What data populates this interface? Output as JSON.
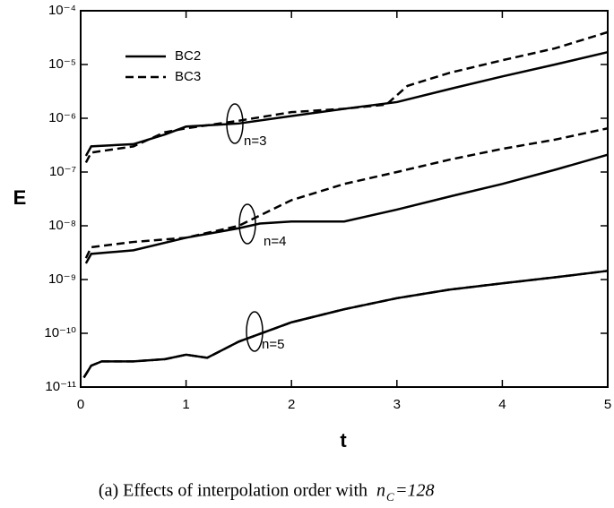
{
  "chart_data": {
    "type": "line",
    "xlabel": "t",
    "ylabel": "E",
    "xlim": [
      0,
      5
    ],
    "xticks": [
      0,
      1,
      2,
      3,
      4,
      5
    ],
    "ylim": [
      1e-11,
      0.0001
    ],
    "log_y": true,
    "yticks": [
      {
        "value": 1e-11,
        "label": "10⁻¹¹"
      },
      {
        "value": 1e-10,
        "label": "10⁻¹⁰"
      },
      {
        "value": 1e-09,
        "label": "10⁻⁹"
      },
      {
        "value": 1e-08,
        "label": "10⁻⁸"
      },
      {
        "value": 1e-07,
        "label": "10⁻⁷"
      },
      {
        "value": 1e-06,
        "label": "10⁻⁶"
      },
      {
        "value": 1e-05,
        "label": "10⁻⁵"
      },
      {
        "value": 0.0001,
        "label": "10⁻⁴"
      }
    ],
    "annotations": [
      "n=3",
      "n=4",
      "n=5"
    ],
    "caption": {
      "text": "(a) Effects of interpolation order with",
      "symbol": "n",
      "subscript": "C",
      "rest": "=128"
    },
    "series": [
      {
        "name": "BC2",
        "dashed": false,
        "color": "#000000",
        "x": [
          0.05,
          0.1,
          0.5,
          0.8,
          1,
          1.5,
          2,
          2.5,
          3,
          3.5,
          4,
          4.5,
          5
        ],
        "values": [
          2e-07,
          3e-07,
          3.3e-07,
          5e-07,
          7e-07,
          8e-07,
          1.1e-06,
          1.5e-06,
          2e-06,
          3.5e-06,
          6e-06,
          1e-05,
          1.7e-05
        ]
      },
      {
        "name": "BC3",
        "dashed": true,
        "color": "#000000",
        "x": [
          0.05,
          0.1,
          0.5,
          0.8,
          1,
          1.5,
          2,
          2.5,
          2.9,
          3.1,
          3.5,
          4,
          4.5,
          5
        ],
        "values": [
          1.5e-07,
          2.3e-07,
          3e-07,
          5.5e-07,
          6.5e-07,
          9e-07,
          1.3e-06,
          1.5e-06,
          1.8e-06,
          4e-06,
          7e-06,
          1.2e-05,
          2e-05,
          4e-05
        ]
      },
      {
        "name": "BC2",
        "dashed": false,
        "color": "#000000",
        "x": [
          0.05,
          0.1,
          0.5,
          1,
          1.5,
          1.7,
          2,
          2.5,
          3,
          3.5,
          4,
          4.5,
          5
        ],
        "values": [
          2e-09,
          3e-09,
          3.5e-09,
          6e-09,
          9e-09,
          1.1e-08,
          1.2e-08,
          1.2e-08,
          2e-08,
          3.5e-08,
          6e-08,
          1.1e-07,
          2.1e-07
        ]
      },
      {
        "name": "BC3",
        "dashed": true,
        "color": "#000000",
        "x": [
          0.05,
          0.1,
          0.5,
          1,
          1.5,
          2,
          2.5,
          3,
          3.5,
          4,
          4.5,
          5
        ],
        "values": [
          2.5e-09,
          4e-09,
          5e-09,
          6e-09,
          1e-08,
          3e-08,
          6e-08,
          1e-07,
          1.7e-07,
          2.7e-07,
          4e-07,
          6.5e-07
        ]
      },
      {
        "name": "BC2",
        "dashed": false,
        "color": "#000000",
        "x": [
          0.03,
          0.1,
          0.2,
          0.5,
          0.8,
          1,
          1.2,
          1.5,
          2,
          2.5,
          3,
          3.5,
          4,
          4.5,
          5
        ],
        "values": [
          1.5e-11,
          2.5e-11,
          3e-11,
          3e-11,
          3.3e-11,
          4e-11,
          3.5e-11,
          7e-11,
          1.6e-10,
          2.8e-10,
          4.5e-10,
          6.5e-10,
          8.5e-10,
          1.1e-09,
          1.45e-09
        ]
      },
      {
        "name": "BC3",
        "dashed": true,
        "color": "#000000",
        "x": [
          0.03,
          0.1,
          0.2,
          0.5,
          0.8,
          1,
          1.2,
          1.5,
          2,
          2.5,
          3,
          3.5,
          4,
          4.5,
          5
        ],
        "values": [
          1.5e-11,
          2.5e-11,
          3e-11,
          3e-11,
          3.3e-11,
          4e-11,
          3.5e-11,
          7e-11,
          1.6e-10,
          2.8e-10,
          4.5e-10,
          6.5e-10,
          8.5e-10,
          1.1e-09,
          1.45e-09
        ]
      }
    ]
  }
}
